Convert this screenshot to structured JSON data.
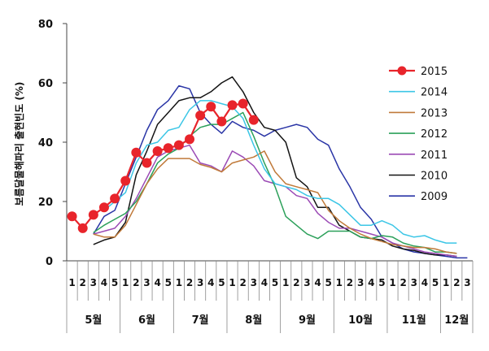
{
  "chart_data": {
    "type": "line",
    "ylabel": "보름달물해파리 출현빈도 (%)",
    "ylim": [
      0,
      80
    ],
    "yticks": [
      "0",
      "20",
      "40",
      "60",
      "80"
    ],
    "grid": false,
    "legend_position": "right",
    "months": [
      {
        "label": "5월",
        "weeks": [
          "1",
          "2",
          "3",
          "4",
          "5"
        ]
      },
      {
        "label": "6월",
        "weeks": [
          "1",
          "2",
          "3",
          "4",
          "5"
        ]
      },
      {
        "label": "7월",
        "weeks": [
          "1",
          "2",
          "3",
          "4",
          "5"
        ]
      },
      {
        "label": "8월",
        "weeks": [
          "1",
          "2",
          "3",
          "4",
          "5"
        ]
      },
      {
        "label": "9월",
        "weeks": [
          "1",
          "2",
          "3",
          "4",
          "5"
        ]
      },
      {
        "label": "10월",
        "weeks": [
          "1",
          "2",
          "3",
          "4",
          "5"
        ]
      },
      {
        "label": "11월",
        "weeks": [
          "1",
          "2",
          "3",
          "4",
          "5"
        ]
      },
      {
        "label": "12월",
        "weeks": [
          "1",
          "2",
          "3"
        ]
      }
    ],
    "series": [
      {
        "name": "2015",
        "color": "#e8242b",
        "marker": "circle",
        "values": [
          15,
          11,
          15.5,
          18,
          21,
          27,
          36.5,
          33,
          37,
          38,
          39,
          41,
          49,
          52,
          47,
          52.5,
          53,
          47.5,
          null,
          null,
          null,
          null,
          null,
          null,
          null,
          null,
          null,
          null,
          null,
          null,
          null,
          null,
          null,
          null,
          null,
          null,
          null,
          null
        ]
      },
      {
        "name": "2014",
        "color": "#3cc6e6",
        "values": [
          null,
          null,
          null,
          17,
          20,
          23,
          33,
          39,
          40,
          44,
          45,
          51,
          54,
          54,
          53,
          52,
          48,
          39,
          31,
          26,
          25,
          24,
          22,
          21,
          21,
          19,
          15.5,
          12,
          12,
          13.5,
          12,
          9,
          8,
          8.5,
          7,
          6,
          6,
          null
        ]
      },
      {
        "name": "2013",
        "color": "#c07a3a",
        "values": [
          null,
          null,
          9,
          8,
          8,
          12,
          19,
          26,
          31,
          34.5,
          34.5,
          34.5,
          32.5,
          31.5,
          30,
          33,
          34,
          35,
          37,
          30,
          26,
          25,
          24,
          23,
          17,
          13.5,
          11,
          9,
          7.5,
          6.5,
          5.5,
          5,
          4.5,
          4.5,
          4,
          3,
          2.5,
          null
        ]
      },
      {
        "name": "2012",
        "color": "#2ca05a",
        "values": [
          null,
          null,
          9.5,
          12,
          14,
          16,
          20,
          26,
          33,
          36,
          38,
          42,
          45,
          46,
          46,
          48,
          50,
          42,
          33,
          25,
          15,
          12,
          9,
          7.5,
          10,
          10,
          10,
          8,
          7.5,
          8.5,
          8,
          6,
          5,
          4.5,
          3,
          3,
          2.5,
          null
        ]
      },
      {
        "name": "2011",
        "color": "#9b4ab5",
        "values": [
          null,
          null,
          9,
          10,
          11,
          15,
          21,
          28,
          35,
          37,
          38,
          39,
          33,
          32,
          30,
          37,
          35,
          32,
          27,
          26,
          25,
          22,
          21,
          16,
          13,
          11,
          11,
          10,
          9,
          8,
          6,
          5,
          4,
          3,
          2.5,
          2,
          1.5,
          null
        ]
      },
      {
        "name": "2010",
        "color": "#141414",
        "values": [
          null,
          null,
          5.5,
          7,
          8,
          13,
          29,
          37,
          46,
          50,
          54,
          55,
          55,
          57,
          60,
          62,
          57,
          50,
          45,
          44,
          40,
          28,
          25,
          18,
          18,
          12,
          10,
          8,
          7.5,
          7,
          5,
          4,
          3.5,
          2.5,
          2,
          2,
          1.5,
          null
        ]
      },
      {
        "name": "2009",
        "color": "#2a35a6",
        "values": [
          null,
          null,
          9,
          15,
          17,
          26,
          35,
          44,
          51,
          54,
          59,
          58,
          50,
          46,
          43,
          47,
          45,
          44,
          42,
          44,
          45,
          46,
          45,
          41,
          39,
          31,
          25,
          18,
          14,
          8,
          6,
          4,
          3,
          2.5,
          2,
          1.5,
          1,
          1
        ]
      }
    ]
  }
}
